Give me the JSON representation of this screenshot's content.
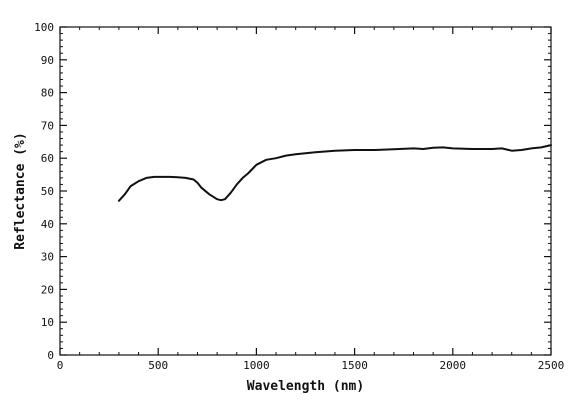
{
  "chart_data": {
    "type": "line",
    "title": "",
    "xlabel": "Wavelength (nm)",
    "ylabel": "Reflectance (%)",
    "xlim": [
      0,
      2500
    ],
    "ylim": [
      0,
      100
    ],
    "x_ticks": [
      0,
      500,
      1000,
      1500,
      2000,
      2500
    ],
    "y_ticks": [
      0,
      10,
      20,
      30,
      40,
      50,
      60,
      70,
      80,
      90,
      100
    ],
    "grid": false,
    "legend": "none",
    "line_color": "#111111",
    "series": [
      {
        "x": [
          300,
          330,
          360,
          400,
          440,
          480,
          520,
          560,
          600,
          640,
          680,
          700,
          720,
          760,
          800,
          820,
          840,
          870,
          900,
          930,
          960,
          1000,
          1050,
          1100,
          1150,
          1200,
          1300,
          1400,
          1500,
          1600,
          1700,
          1800,
          1850,
          1900,
          1950,
          2000,
          2100,
          2200,
          2250,
          2300,
          2350,
          2400,
          2450,
          2500
        ],
        "y": [
          47,
          49,
          51.5,
          53,
          54,
          54.3,
          54.3,
          54.3,
          54.2,
          54,
          53.5,
          52.5,
          51,
          49,
          47.5,
          47.2,
          47.5,
          49.5,
          52,
          54,
          55.5,
          58,
          59.5,
          60,
          60.8,
          61.2,
          61.8,
          62.3,
          62.5,
          62.5,
          62.7,
          63,
          62.8,
          63.2,
          63.3,
          63,
          62.8,
          62.8,
          63,
          62.3,
          62.5,
          63,
          63.3,
          64
        ]
      }
    ]
  }
}
